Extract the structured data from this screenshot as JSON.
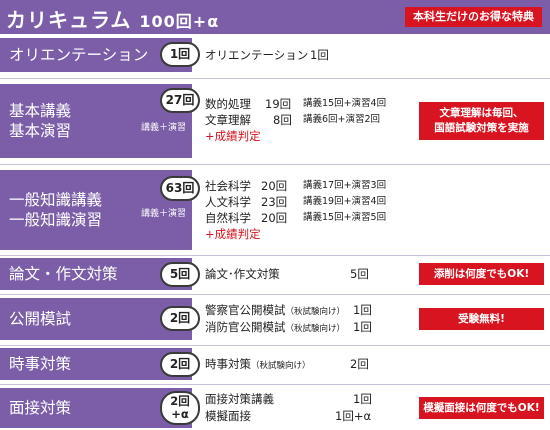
{
  "header": {
    "title": "カリキュラム",
    "count": "100回+α",
    "badge": "本科生だけのお得な特典"
  },
  "rows": [
    {
      "title_lines": [
        "オリエンテーション"
      ],
      "badge_lines": [
        "1回"
      ],
      "subtitle": "",
      "lines": [
        {
          "name": "オリエンテーション",
          "count": "1回"
        }
      ]
    },
    {
      "title_lines": [
        "基本講義",
        "基本演習"
      ],
      "badge_lines": [
        "27回"
      ],
      "subtitle": "講義＋演習",
      "lines": [
        {
          "name": "数的処理",
          "count": "19回",
          "detail": "講義15回+演習4回"
        },
        {
          "name": "文章理解",
          "count": "8回",
          "detail": "講義6回+演習2回"
        },
        {
          "name": "+成績判定"
        }
      ],
      "note": [
        "文章理解は毎回、",
        "国語試験対策を実施"
      ]
    },
    {
      "title_lines": [
        "一般知識講義",
        "一般知識演習"
      ],
      "badge_lines": [
        "63回"
      ],
      "subtitle": "講義＋演習",
      "lines": [
        {
          "name": "社会科学",
          "count": "20回",
          "detail": "講義17回+演習3回"
        },
        {
          "name": "人文科学",
          "count": "23回",
          "detail": "講義19回+演習4回"
        },
        {
          "name": "自然科学",
          "count": "20回",
          "detail": "講義15回+演習5回"
        },
        {
          "name": "+成績判定"
        }
      ]
    },
    {
      "title_lines": [
        "論文・作文対策"
      ],
      "badge_lines": [
        "5回"
      ],
      "subtitle": "",
      "lines": [
        {
          "name": "論文･作文対策",
          "count": "5回"
        }
      ],
      "note": [
        "添削は何度でもOK!"
      ]
    },
    {
      "title_lines": [
        "公開模試"
      ],
      "badge_lines": [
        "2回"
      ],
      "subtitle": "",
      "lines": [
        {
          "name": "警察官公開模試",
          "small": "（秋試験向け）",
          "count": "1回"
        },
        {
          "name": "消防官公開模試",
          "small": "（秋試験向け）",
          "count": "1回"
        }
      ],
      "note": [
        "受験無料!"
      ]
    },
    {
      "title_lines": [
        "時事対策"
      ],
      "badge_lines": [
        "2回"
      ],
      "subtitle": "",
      "lines": [
        {
          "name": "時事対策",
          "small": "（秋試験向け）",
          "count": "2回"
        }
      ]
    },
    {
      "title_lines": [
        "面接対策"
      ],
      "badge_lines": [
        "2回",
        "+α"
      ],
      "subtitle": "",
      "lines": [
        {
          "name": "面接対策講義",
          "count": "1回"
        },
        {
          "name": "模擬面接",
          "count": "1回+α"
        }
      ],
      "note": [
        "模擬面接は何度でもOK!"
      ]
    }
  ]
}
